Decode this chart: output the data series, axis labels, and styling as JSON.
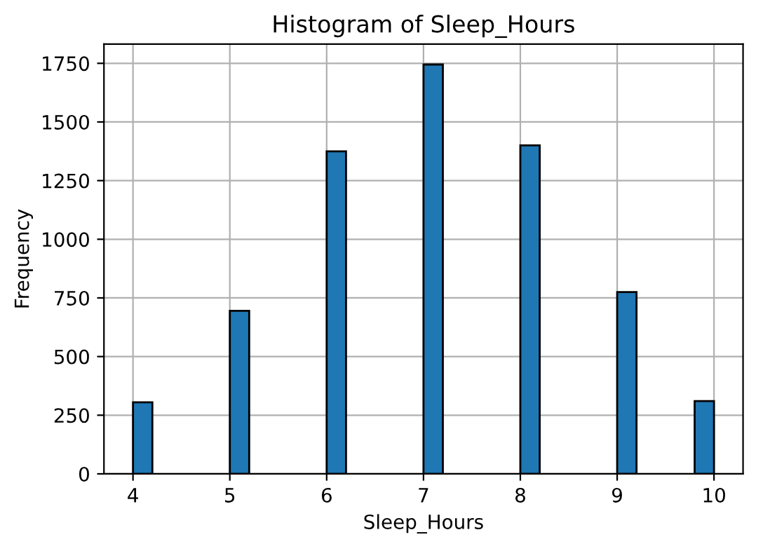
{
  "chart_data": {
    "type": "histogram",
    "title": "Histogram of Sleep_Hours",
    "xlabel": "Sleep_Hours",
    "ylabel": "Frequency",
    "bins": [
      4.0,
      4.2,
      4.4,
      4.6,
      4.8,
      5.0,
      5.2,
      5.4,
      5.6,
      5.8,
      6.0,
      6.2,
      6.4,
      6.6,
      6.8,
      7.0,
      7.2,
      7.4,
      7.6,
      7.8,
      8.0,
      8.2,
      8.4,
      8.6,
      8.8,
      9.0,
      9.2,
      9.4,
      9.6,
      9.8,
      10.0
    ],
    "values": [
      305,
      0,
      0,
      0,
      0,
      695,
      0,
      0,
      0,
      0,
      1375,
      0,
      0,
      0,
      0,
      1745,
      0,
      0,
      0,
      0,
      1400,
      0,
      0,
      0,
      0,
      775,
      0,
      0,
      0,
      310
    ],
    "color": "#1f77b4",
    "xlim": [
      3.7,
      10.3
    ],
    "xticks": [
      4,
      5,
      6,
      7,
      8,
      9,
      10
    ],
    "ylim": [
      0,
      1832
    ],
    "yticks": [
      0,
      250,
      500,
      750,
      1000,
      1250,
      1500,
      1750
    ],
    "grid": true
  }
}
